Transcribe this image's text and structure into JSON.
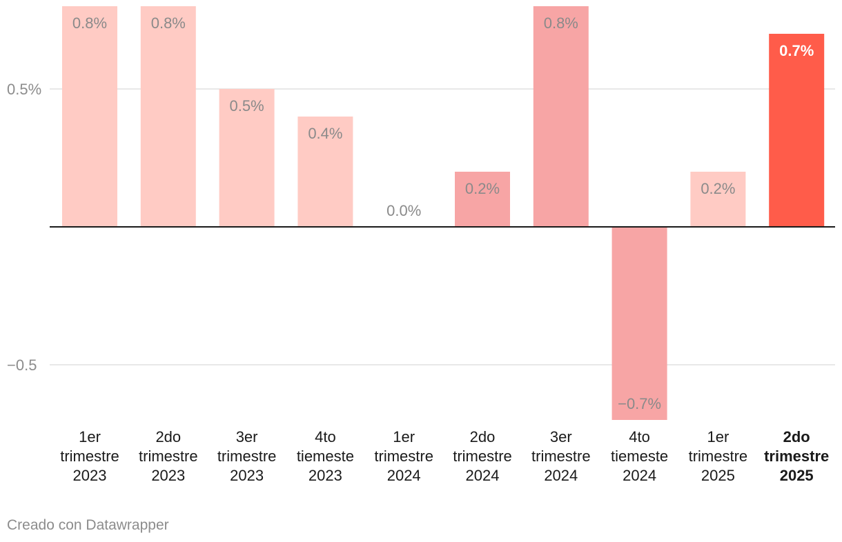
{
  "chart_data": {
    "type": "bar",
    "categories": [
      "1er trimestre 2023",
      "2do trimestre 2023",
      "3er trimestre 2023",
      "4to tiemeste 2023",
      "1er trimestre 2024",
      "2do trimestre 2024",
      "3er trimestre 2024",
      "4to tiemeste 2024",
      "1er trimestre 2025",
      "2do trimestre 2025"
    ],
    "category_lines": [
      [
        "1er",
        "trimestre",
        "2023"
      ],
      [
        "2do",
        "trimestre",
        "2023"
      ],
      [
        "3er",
        "trimestre",
        "2023"
      ],
      [
        "4to",
        "tiemeste",
        "2023"
      ],
      [
        "1er",
        "trimestre",
        "2024"
      ],
      [
        "2do",
        "trimestre",
        "2024"
      ],
      [
        "3er",
        "trimestre",
        "2024"
      ],
      [
        "4to",
        "tiemeste",
        "2024"
      ],
      [
        "1er",
        "trimestre",
        "2025"
      ],
      [
        "2do",
        "trimestre",
        "2025"
      ]
    ],
    "values": [
      0.8,
      0.8,
      0.5,
      0.4,
      0.0,
      0.2,
      0.8,
      -0.7,
      0.2,
      0.7
    ],
    "value_labels": [
      "0.8%",
      "0.8%",
      "0.5%",
      "0.4%",
      "0.0%",
      "0.2%",
      "0.8%",
      "−0.7%",
      "0.2%",
      "0.7%"
    ],
    "colors": [
      "#ffcbc4",
      "#ffcbc4",
      "#ffcbc4",
      "#ffcbc4",
      "#ffcbc4",
      "#f7a5a5",
      "#f7a5a5",
      "#f7a5a5",
      "#ffcbc4",
      "#ff5c4a"
    ],
    "highlight_index": 9,
    "yticks": [
      {
        "value": 0.5,
        "label": "0.5%"
      },
      {
        "value": -0.5,
        "label": "−0.5"
      }
    ],
    "ylim": [
      -0.7,
      0.8
    ],
    "grid": true,
    "title": "",
    "xlabel": "",
    "ylabel": ""
  },
  "footer": {
    "credit": "Creado con Datawrapper"
  }
}
